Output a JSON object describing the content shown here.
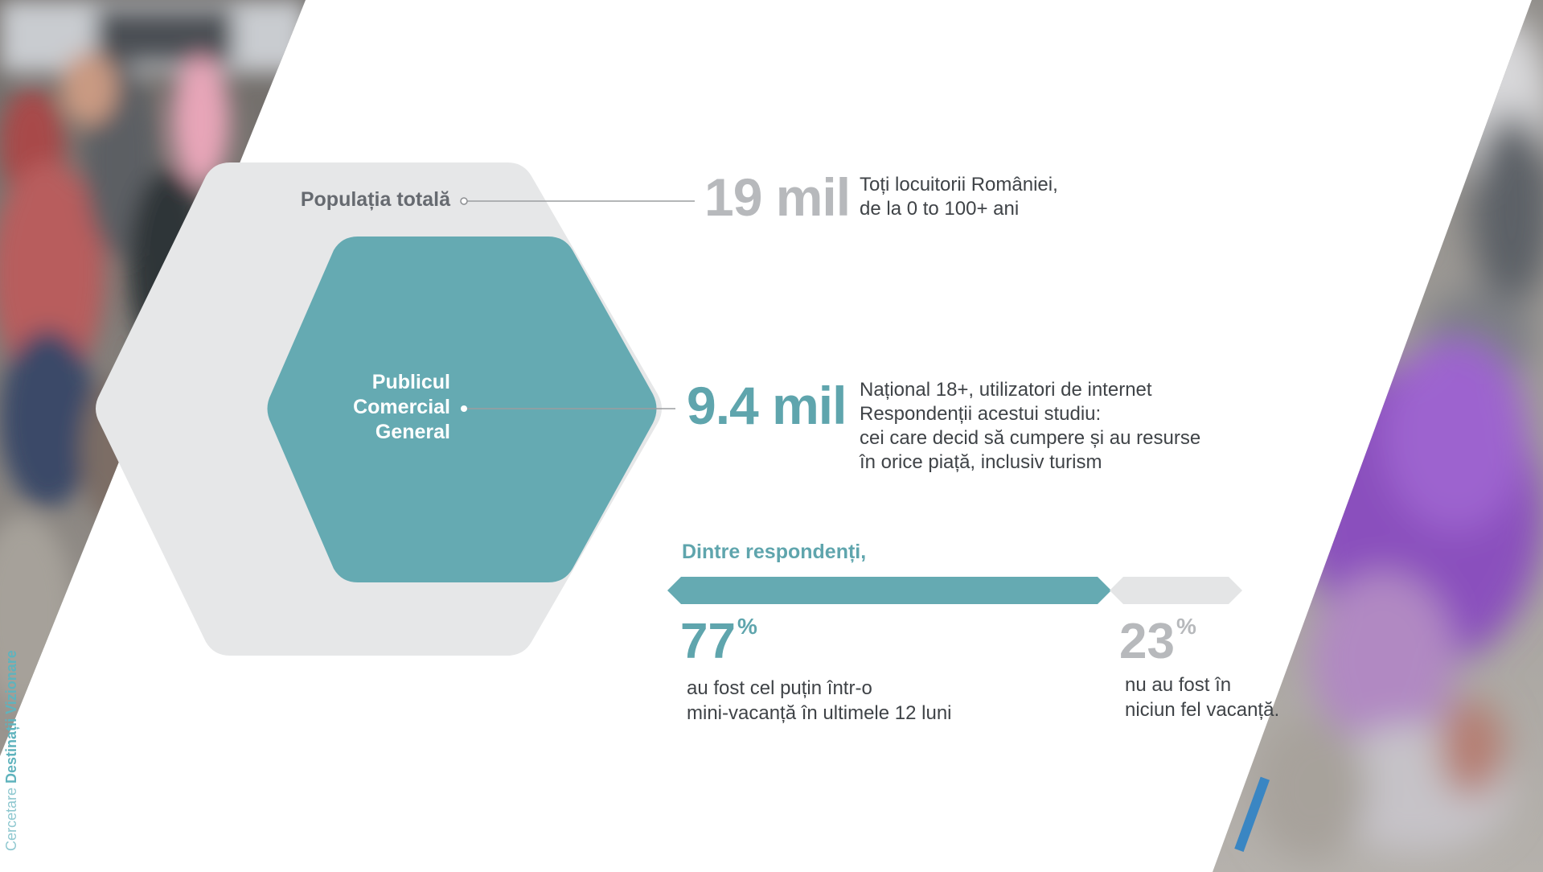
{
  "hexagons": {
    "outer_label": "Populația totală",
    "inner_label_lines": [
      "Publicul",
      "Comercial",
      "General"
    ]
  },
  "stats": [
    {
      "value": "19 mil",
      "desc_lines": [
        "Toți locuitorii României,",
        "de la 0 to 100+ ani"
      ]
    },
    {
      "value": "9.4 mil",
      "desc_lines": [
        "Național 18+, utilizatori de internet",
        "Respondenții acestui studiu:",
        "cei care decid să cumpere și au resurse",
        "în orice piață, inclusiv turism"
      ]
    }
  ],
  "respondents": {
    "heading": "Dintre respondenți,",
    "split": [
      {
        "number": "77",
        "unit": "%",
        "share": 0.77,
        "desc_lines": [
          "au fost cel puțin într-o",
          "mini-vacanță în ultimele 12 luni"
        ]
      },
      {
        "number": "23",
        "unit": "%",
        "share": 0.23,
        "desc_lines": [
          "nu au fost în",
          "niciun fel vacanță."
        ]
      }
    ]
  },
  "footer": {
    "credit_prefix": "Cercetare ",
    "credit_brand": "Destinații Vizionare"
  },
  "colors": {
    "teal": "#5fa5ad",
    "hex_teal": "#65aab2",
    "light_grey": "#e6e7e8",
    "mid_grey": "#b7b9bc",
    "text": "#3f4347"
  }
}
